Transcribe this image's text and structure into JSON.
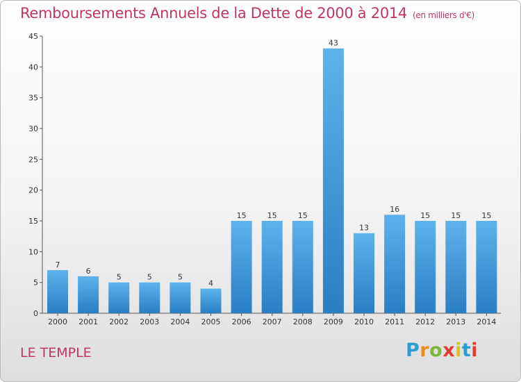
{
  "title": "Remboursements Annuels de la Dette de 2000 à 2014",
  "unit": "(en milliers d'€)",
  "commune": "LE TEMPLE",
  "logo": [
    "P",
    "r",
    "o",
    "x",
    "i",
    "t",
    "i"
  ],
  "colors": {
    "bar_light": "#5aaee8",
    "bar_dark": "#2a7ec2",
    "title": "#c0365e",
    "axis": "#555555"
  },
  "chart_data": {
    "type": "bar",
    "title": "Remboursements Annuels de la Dette de 2000 à 2014",
    "categories": [
      "2000",
      "2001",
      "2002",
      "2003",
      "2004",
      "2005",
      "2006",
      "2007",
      "2008",
      "2009",
      "2010",
      "2011",
      "2012",
      "2013",
      "2014"
    ],
    "values": [
      7,
      6,
      5,
      5,
      5,
      4,
      15,
      15,
      15,
      43,
      13,
      16,
      15,
      15,
      15
    ],
    "ylim": [
      0,
      45
    ],
    "yticks": [
      0,
      5,
      10,
      15,
      20,
      25,
      30,
      35,
      40,
      45
    ],
    "grid": false
  }
}
